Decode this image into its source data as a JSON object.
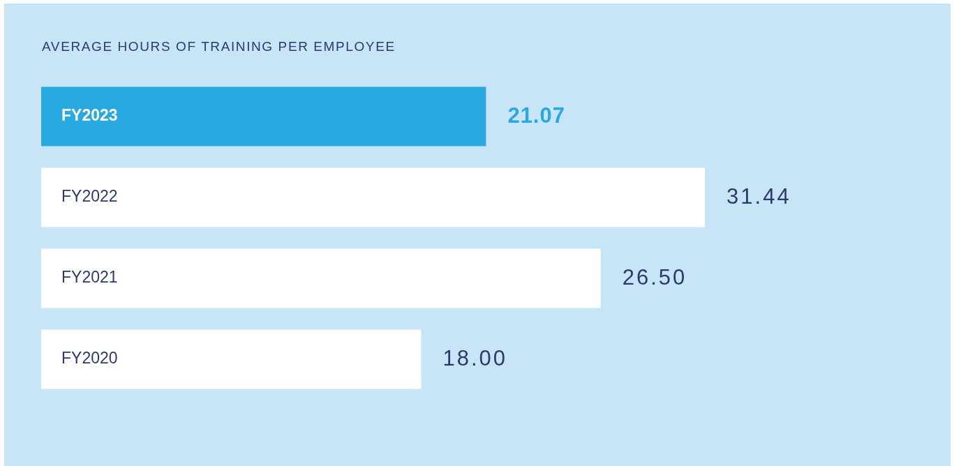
{
  "chart_data": {
    "type": "bar",
    "orientation": "horizontal",
    "title": "AVERAGE HOURS OF TRAINING PER EMPLOYEE",
    "categories": [
      "FY2023",
      "FY2022",
      "FY2021",
      "FY2020"
    ],
    "values": [
      21.07,
      31.44,
      26.5,
      18.0
    ],
    "value_labels": [
      "21.07",
      "31.44",
      "26.50",
      "18.00"
    ],
    "colors": [
      "#29a9e1",
      "#ffffff",
      "#ffffff",
      "#ffffff"
    ],
    "legend": false
  }
}
